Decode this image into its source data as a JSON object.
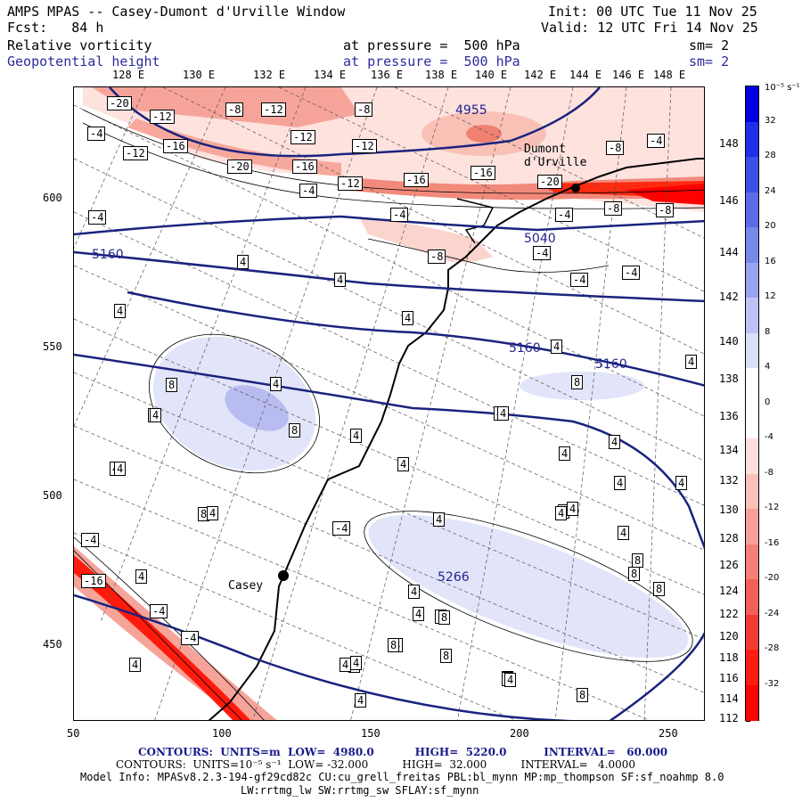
{
  "header": {
    "title": "AMPS MPAS -- Casey-Dumont d'Urville Window",
    "init": "Init: 00 UTC Tue 11 Nov 25",
    "fcst": "Fcst:   84 h",
    "valid": "Valid: 12 UTC Fri 14 Nov 25",
    "field1": {
      "name": "Relative vorticity",
      "level": "at pressure =  500 hPa",
      "sm": "sm= 2"
    },
    "field2": {
      "name": "Geopotential height",
      "level": "at pressure =  500 hPa",
      "sm": "sm= 2"
    }
  },
  "axes": {
    "lon_top": [
      "128 E",
      "130 E",
      "132 E",
      "134 E",
      "136 E",
      "138 E",
      "140 E",
      "142 E",
      "144 E",
      "146 E",
      "148 E"
    ],
    "lat_right": [
      "148 E",
      "146 E",
      "144 E",
      "142 E",
      "140 E",
      "138 E",
      "136 E",
      "134 E",
      "132 E",
      "130 E",
      "128 E",
      "126 E",
      "124 E",
      "122 E",
      "120 E",
      "118 E",
      "116 E",
      "114 E",
      "112 E"
    ],
    "y_left": [
      "600",
      "550",
      "500",
      "450"
    ],
    "x_bottom": [
      "50",
      "100",
      "150",
      "200",
      "250"
    ]
  },
  "colorbar": {
    "unit": "10⁻⁵ s⁻¹",
    "labels": [
      "32",
      "28",
      "24",
      "20",
      "16",
      "12",
      "8",
      "4",
      "0",
      "-4",
      "-8",
      "-12",
      "-16",
      "-20",
      "-24",
      "-28",
      "-32"
    ],
    "colors": [
      "#0000e0",
      "#1f2fe8",
      "#3b4fe6",
      "#5a6ce6",
      "#7a88ea",
      "#9aa3ee",
      "#bcc2f4",
      "#dcdff8",
      "#ffffff",
      "#ffffff",
      "#fde0dc",
      "#fbc0b8",
      "#f7a098",
      "#f48078",
      "#f26058",
      "#f03c34",
      "#ff1c10",
      "#ff0000"
    ]
  },
  "map_labels": {
    "heights": [
      "4955",
      "5160",
      "5160",
      "5160",
      "5266",
      "5040"
    ],
    "stations": [
      "Casey",
      "Dumont d'Urville"
    ],
    "vorticity": [
      "-20",
      "-12",
      "-12",
      "-8",
      "-12",
      "-8",
      "-4",
      "-12",
      "-16",
      "-12",
      "-20",
      "-16",
      "-4",
      "-12",
      "-16",
      "-16",
      "-20",
      "-4",
      "-8",
      "-4",
      "-8",
      "-4",
      "-8",
      "-4",
      "-4",
      "-8",
      "-4",
      "-4",
      "4",
      "4",
      "4",
      "4",
      "4",
      "4",
      "4",
      "4",
      "4",
      "4",
      "4",
      "8",
      "4",
      "4",
      "8",
      "8",
      "4",
      "8",
      "4",
      "4",
      "4",
      "4",
      "4",
      "4",
      "4",
      "4",
      "4",
      "4",
      "4",
      "4",
      "4",
      "4",
      "8",
      "8",
      "-4",
      "4",
      "4",
      "8",
      "8",
      "-4",
      "-16",
      "-4",
      "4",
      "4",
      "8",
      "8",
      "4",
      "4",
      "8",
      "4",
      "8",
      "4",
      "8",
      "-4"
    ]
  },
  "footer": {
    "line1": "CONTOURS:  UNITS=m  LOW=  4980.0           HIGH=  5220.0          INTERVAL=   60.000",
    "line2": "CONTOURS:  UNITS=10⁻⁵ s⁻¹  LOW= -32.000          HIGH=  32.000          INTERVAL=   4.0000",
    "line3": "Model Info: MPASv8.2.3-194-gf29cd82c CU:cu_grell_freitas PBL:bl_mynn MP:mp_thompson SF:sf_noahmp 8.0",
    "line4": "LW:rrtmg_lw SW:rrtmg_sw SFLAY:sf_mynn"
  }
}
